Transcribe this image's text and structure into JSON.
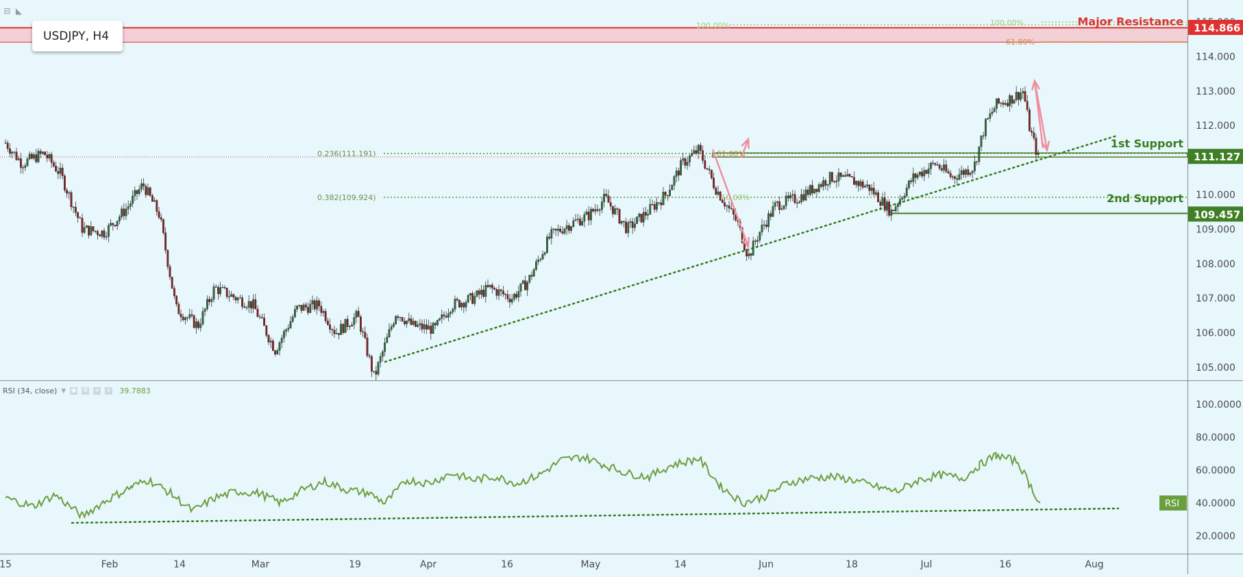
{
  "symbol": "USDJPY, H4",
  "corner_icons": [
    "collapse-icon",
    "flag-icon"
  ],
  "chart_data": {
    "type": "candlestick",
    "instrument": "USDJPY",
    "timeframe": "H4",
    "price_axis": {
      "ylim": [
        104.3,
        115.3
      ],
      "ticks": [
        "115.000",
        "114.000",
        "113.000",
        "112.000",
        "111.000",
        "110.000",
        "109.000",
        "108.000",
        "107.000",
        "106.000",
        "105.000"
      ]
    },
    "date_axis": {
      "labels": [
        "15",
        "Feb",
        "14",
        "Mar",
        "19",
        "Apr",
        "16",
        "May",
        "14",
        "Jun",
        "18",
        "Jul",
        "16",
        "Aug"
      ]
    },
    "close_path": [
      [
        "Jan 15",
        111.5
      ],
      [
        "Jan 18",
        110.9
      ],
      [
        "Jan 22",
        111.2
      ],
      [
        "Jan 25",
        110.6
      ],
      [
        "Jan 29",
        109.0
      ],
      [
        "Feb 2",
        108.9
      ],
      [
        "Feb 6",
        109.6
      ],
      [
        "Feb 9",
        110.3
      ],
      [
        "Feb 12",
        109.4
      ],
      [
        "Feb 15",
        106.7
      ],
      [
        "Feb 19",
        106.2
      ],
      [
        "Feb 22",
        107.3
      ],
      [
        "Feb 26",
        107.0
      ],
      [
        "Mar 1",
        106.8
      ],
      [
        "Mar 5",
        105.5
      ],
      [
        "Mar 9",
        106.7
      ],
      [
        "Mar 13",
        106.8
      ],
      [
        "Mar 16",
        106.0
      ],
      [
        "Mar 20",
        106.5
      ],
      [
        "Mar 23",
        104.7
      ],
      [
        "Mar 27",
        106.6
      ],
      [
        "Mar 30",
        106.2
      ],
      [
        "Apr 3",
        106.1
      ],
      [
        "Apr 6",
        106.8
      ],
      [
        "Apr 10",
        107.0
      ],
      [
        "Apr 13",
        107.3
      ],
      [
        "Apr 17",
        107.0
      ],
      [
        "Apr 20",
        107.5
      ],
      [
        "Apr 24",
        108.8
      ],
      [
        "Apr 27",
        109.1
      ],
      [
        "May 1",
        109.4
      ],
      [
        "May 4",
        109.9
      ],
      [
        "May 8",
        109.0
      ],
      [
        "May 11",
        109.4
      ],
      [
        "May 15",
        110.0
      ],
      [
        "May 18",
        110.9
      ],
      [
        "May 21",
        111.3
      ],
      [
        "May 24",
        110.2
      ],
      [
        "May 28",
        109.2
      ],
      [
        "May 30",
        108.2
      ],
      [
        "Jun 1",
        108.9
      ],
      [
        "Jun 4",
        109.7
      ],
      [
        "Jun 8",
        109.9
      ],
      [
        "Jun 11",
        110.2
      ],
      [
        "Jun 14",
        110.5
      ],
      [
        "Jun 18",
        110.4
      ],
      [
        "Jun 21",
        110.2
      ],
      [
        "Jun 25",
        109.5
      ],
      [
        "Jun 29",
        110.5
      ],
      [
        "Jul 3",
        110.9
      ],
      [
        "Jul 6",
        110.5
      ],
      [
        "Jul 10",
        110.8
      ],
      [
        "Jul 12",
        112.0
      ],
      [
        "Jul 14",
        112.6
      ],
      [
        "Jul 17",
        112.8
      ],
      [
        "Jul 19",
        113.0
      ],
      [
        "Jul 20",
        112.0
      ],
      [
        "Jul 22",
        110.9
      ]
    ],
    "levels": [
      {
        "name": "Major Resistance",
        "price": 114.866,
        "label": "114.866",
        "color": "#e03131"
      },
      {
        "name": "1st Support",
        "price": 111.127,
        "label": "111.127",
        "color": "#3b7d23"
      },
      {
        "name": "2nd Support",
        "price": 109.457,
        "label": "109.457",
        "color": "#3b7d23"
      }
    ],
    "fibonacci": [
      {
        "label": "0.236(111.191)",
        "price": 111.191
      },
      {
        "label": "0.382(109.924)",
        "price": 109.924
      }
    ],
    "fib_tags": [
      "100.00%",
      "100.00%",
      "61.80%",
      "61.80%",
      "50.00%"
    ],
    "rsi": {
      "title": "RSI (34, close)",
      "value": "39.7883",
      "tag": "RSI",
      "ticks": [
        "100.0000",
        "80.0000",
        "60.0000",
        "40.0000",
        "20.0000"
      ],
      "ylim": [
        12,
        108
      ],
      "path": [
        [
          "Jan 15",
          43
        ],
        [
          "Jan 20",
          38
        ],
        [
          "Jan 24",
          45
        ],
        [
          "Jan 29",
          32
        ],
        [
          "Feb 2",
          41
        ],
        [
          "Feb 7",
          50
        ],
        [
          "Feb 10",
          54
        ],
        [
          "Feb 14",
          46
        ],
        [
          "Feb 18",
          35
        ],
        [
          "Feb 22",
          43
        ],
        [
          "Feb 26",
          47
        ],
        [
          "Mar 2",
          46
        ],
        [
          "Mar 6",
          40
        ],
        [
          "Mar 10",
          48
        ],
        [
          "Mar 14",
          53
        ],
        [
          "Mar 18",
          48
        ],
        [
          "Mar 22",
          46
        ],
        [
          "Mar 25",
          40
        ],
        [
          "Mar 29",
          54
        ],
        [
          "Apr 2",
          52
        ],
        [
          "Apr 6",
          58
        ],
        [
          "Apr 10",
          54
        ],
        [
          "Apr 14",
          56
        ],
        [
          "Apr 18",
          52
        ],
        [
          "Apr 22",
          57
        ],
        [
          "Apr 26",
          66
        ],
        [
          "Apr 30",
          68
        ],
        [
          "May 4",
          63
        ],
        [
          "May 8",
          58
        ],
        [
          "May 12",
          56
        ],
        [
          "May 16",
          63
        ],
        [
          "May 21",
          67
        ],
        [
          "May 25",
          50
        ],
        [
          "May 29",
          40
        ],
        [
          "Jun 2",
          44
        ],
        [
          "Jun 6",
          52
        ],
        [
          "Jun 10",
          55
        ],
        [
          "Jun 14",
          56
        ],
        [
          "Jun 18",
          54
        ],
        [
          "Jun 22",
          50
        ],
        [
          "Jun 26",
          47
        ],
        [
          "Jun 30",
          54
        ],
        [
          "Jul 4",
          57
        ],
        [
          "Jul 8",
          55
        ],
        [
          "Jul 11",
          63
        ],
        [
          "Jul 14",
          69
        ],
        [
          "Jul 18",
          65
        ],
        [
          "Jul 20",
          52
        ],
        [
          "Jul 22",
          40
        ]
      ]
    }
  }
}
